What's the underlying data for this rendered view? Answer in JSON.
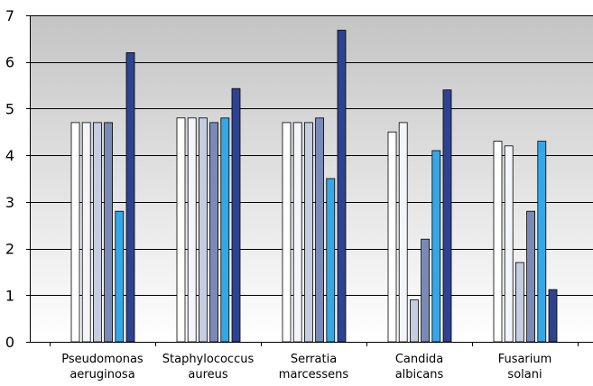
{
  "chart_data": {
    "type": "bar",
    "title": "",
    "xlabel": "",
    "ylabel": "",
    "ylim": [
      0,
      7
    ],
    "yticks": [
      0,
      1,
      2,
      3,
      4,
      5,
      6,
      7
    ],
    "grid": true,
    "legend": "none",
    "plot_background": "#c8c8c8 gradient to #ffffff",
    "categories": [
      [
        "Pseudomonas",
        "aeruginosa"
      ],
      [
        "Staphylococcus",
        "aureus"
      ],
      [
        "Serratia",
        "marcessens"
      ],
      [
        "Candida",
        "albicans"
      ],
      [
        "Fusarium",
        "solani"
      ]
    ],
    "series": [
      {
        "color": "#ffffff",
        "values": [
          4.7,
          4.8,
          4.7,
          4.5,
          4.3
        ]
      },
      {
        "color": "#f4f5fa",
        "values": [
          4.7,
          4.8,
          4.7,
          4.7,
          4.2
        ]
      },
      {
        "color": "#c5cde0",
        "values": [
          4.7,
          4.8,
          4.7,
          0.9,
          1.7
        ]
      },
      {
        "color": "#7a8ab7",
        "values": [
          4.7,
          4.7,
          4.8,
          2.2,
          2.8
        ]
      },
      {
        "color": "#35a7e6",
        "values": [
          2.8,
          4.8,
          3.5,
          4.1,
          4.3
        ]
      },
      {
        "color": "#2e4390",
        "values": [
          6.2,
          5.43,
          6.68,
          5.4,
          1.12
        ]
      }
    ]
  }
}
